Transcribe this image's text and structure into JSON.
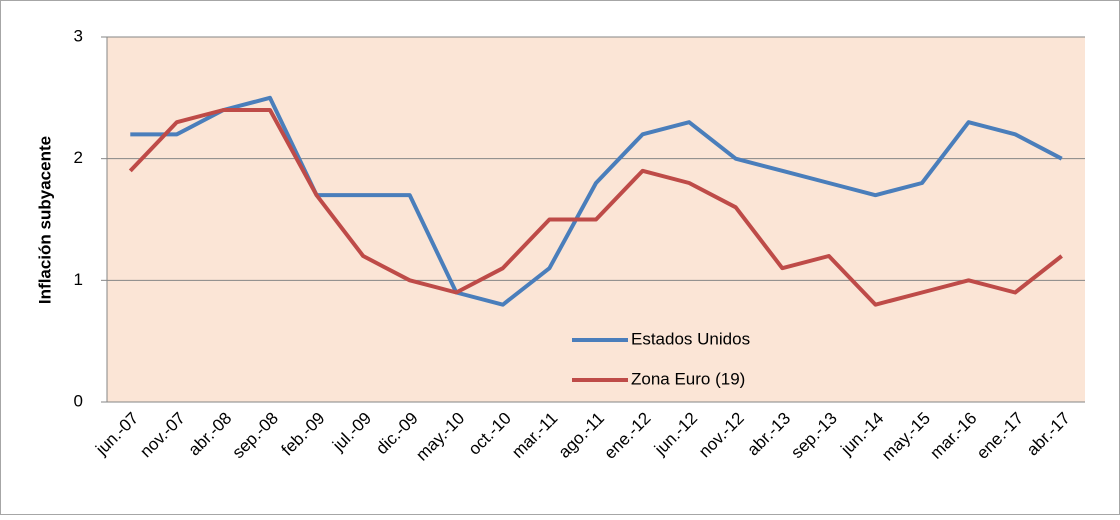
{
  "chart_data": {
    "type": "line",
    "y_label": "Inflación subyacente",
    "categories": [
      "jun.-07",
      "nov.-07",
      "abr.-08",
      "sep.-08",
      "feb.-09",
      "jul.-09",
      "dic.-09",
      "may.-10",
      "oct.-10",
      "mar.-11",
      "ago.-11",
      "ene.-12",
      "jun.-12",
      "nov.-12",
      "abr.-13",
      "sep.-13",
      "jun.-14",
      "may.-15",
      "mar.-16",
      "ene.-17",
      "abr.-17"
    ],
    "series": [
      {
        "name": "Estados Unidos",
        "color": "#4a7ebb",
        "values": [
          2.2,
          2.2,
          2.4,
          2.5,
          1.7,
          1.7,
          1.7,
          0.9,
          0.8,
          1.1,
          1.8,
          2.2,
          2.3,
          2.0,
          1.9,
          1.8,
          1.7,
          1.8,
          2.3,
          2.2,
          2.0
        ]
      },
      {
        "name": "Zona Euro (19)",
        "color": "#be4b48",
        "values": [
          1.9,
          2.3,
          2.4,
          2.4,
          1.7,
          1.2,
          1.0,
          0.9,
          1.1,
          1.5,
          1.5,
          1.9,
          1.8,
          1.6,
          1.1,
          1.2,
          0.8,
          0.9,
          1.0,
          0.9,
          1.2
        ]
      }
    ],
    "ylim": [
      0,
      3
    ],
    "yticks": [
      0,
      1,
      2,
      3
    ],
    "grid": true,
    "plot_background": "#fbe5d6"
  }
}
